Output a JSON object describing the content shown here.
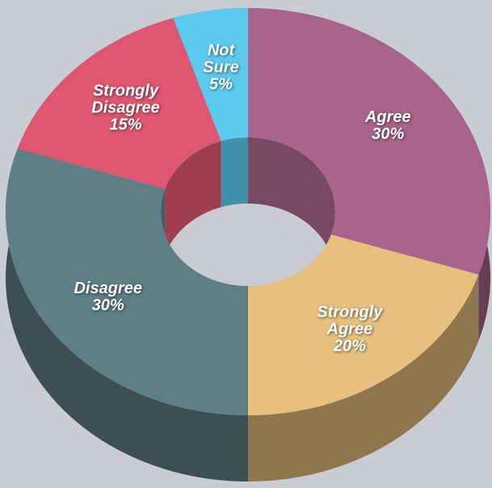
{
  "chart_data": {
    "type": "pie",
    "donut": true,
    "categories": [
      "Agree",
      "Strongly Agree",
      "Disagree",
      "Strongly Disagree",
      "Not Sure"
    ],
    "values": [
      30,
      20,
      30,
      15,
      5
    ],
    "value_labels": [
      "30%",
      "20%",
      "30%",
      "15%",
      "5%"
    ],
    "colors": [
      "#a8648a",
      "#e6c07c",
      "#5f7f87",
      "#de5670",
      "#5ccaee"
    ]
  }
}
